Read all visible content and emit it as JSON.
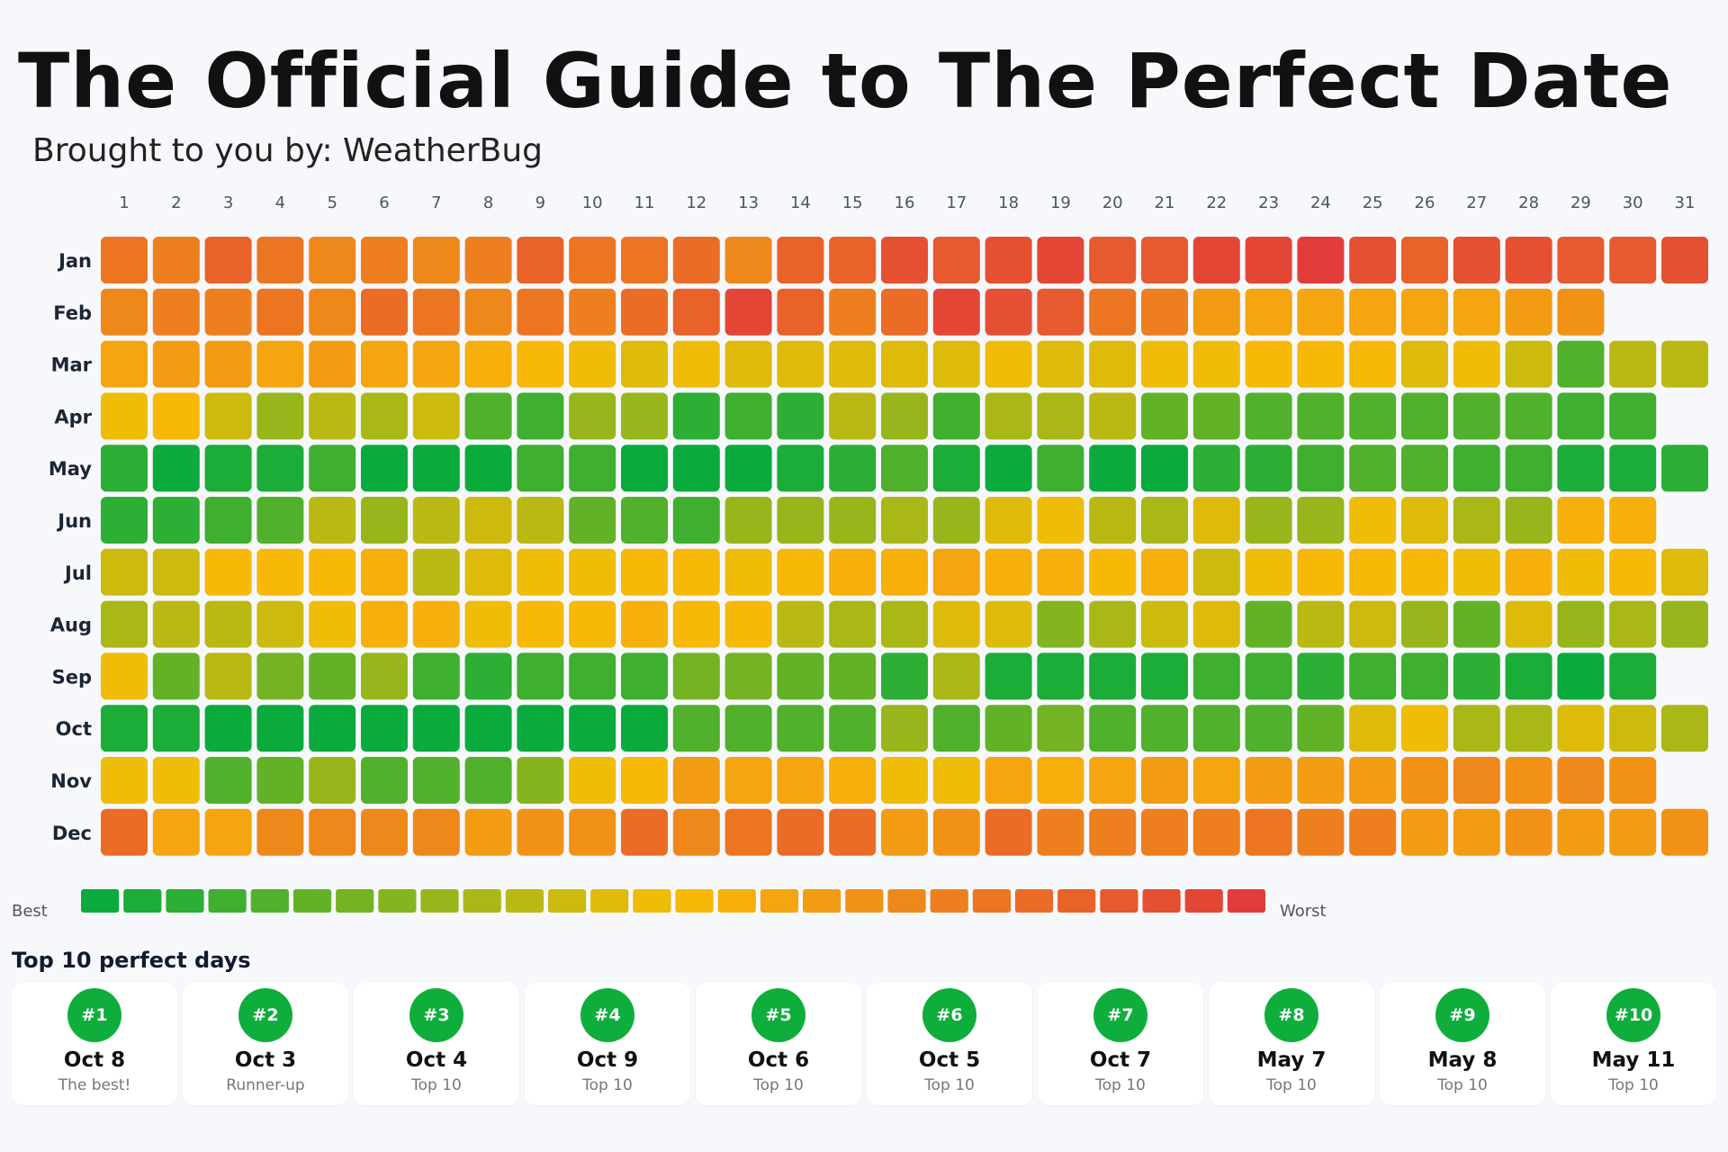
{
  "title": "The Official Guide to The Perfect Date",
  "subtitle": "Brought to you by: WeatherBug",
  "chart_data": {
    "type": "heatmap",
    "days": [
      "1",
      "2",
      "3",
      "4",
      "5",
      "6",
      "7",
      "8",
      "9",
      "10",
      "11",
      "12",
      "13",
      "14",
      "15",
      "16",
      "17",
      "18",
      "19",
      "20",
      "21",
      "22",
      "23",
      "24",
      "25",
      "26",
      "27",
      "28",
      "29",
      "30",
      "31"
    ],
    "months": [
      "Jan",
      "Feb",
      "Mar",
      "Apr",
      "May",
      "Jun",
      "Jul",
      "Aug",
      "Sep",
      "Oct",
      "Nov",
      "Dec"
    ],
    "value_scale": "0 = best (green) to 27 = worst (red)",
    "values": [
      [
        21,
        20,
        23,
        21,
        19,
        20,
        19,
        20,
        23,
        21,
        21,
        22,
        19,
        23,
        23,
        25,
        24,
        25,
        26,
        24,
        24,
        26,
        26,
        27,
        25,
        23,
        25,
        25,
        24,
        24,
        25
      ],
      [
        19,
        20,
        20,
        21,
        19,
        22,
        21,
        19,
        21,
        20,
        22,
        23,
        26,
        23,
        20,
        22,
        26,
        25,
        24,
        21,
        20,
        17,
        16,
        16,
        16,
        16,
        16,
        17,
        18
      ],
      [
        16,
        17,
        17,
        16,
        17,
        16,
        16,
        15,
        14,
        13,
        12,
        13,
        12,
        12,
        12,
        12,
        12,
        13,
        12,
        12,
        13,
        13,
        14,
        14,
        14,
        12,
        13,
        11,
        4,
        10,
        10
      ],
      [
        13,
        14,
        11,
        8,
        10,
        9,
        11,
        4,
        3,
        8,
        8,
        2,
        3,
        2,
        10,
        8,
        3,
        9,
        9,
        10,
        5,
        5,
        4,
        4,
        4,
        4,
        4,
        4,
        3,
        3
      ],
      [
        2,
        0,
        1,
        1,
        3,
        0,
        0,
        0,
        3,
        3,
        0,
        0,
        0,
        1,
        2,
        4,
        1,
        0,
        3,
        0,
        0,
        2,
        2,
        3,
        4,
        4,
        3,
        3,
        1,
        1,
        2
      ],
      [
        2,
        2,
        3,
        4,
        10,
        8,
        10,
        11,
        10,
        5,
        4,
        3,
        8,
        8,
        8,
        9,
        8,
        12,
        13,
        10,
        9,
        12,
        8,
        8,
        13,
        12,
        9,
        8,
        15,
        15
      ],
      [
        11,
        11,
        14,
        14,
        14,
        15,
        10,
        12,
        13,
        13,
        14,
        14,
        13,
        14,
        15,
        15,
        16,
        15,
        15,
        14,
        15,
        11,
        13,
        14,
        14,
        14,
        13,
        15,
        13,
        14,
        12
      ],
      [
        9,
        10,
        10,
        11,
        13,
        15,
        15,
        13,
        14,
        14,
        15,
        14,
        14,
        10,
        9,
        9,
        12,
        12,
        7,
        9,
        11,
        12,
        5,
        10,
        11,
        8,
        5,
        12,
        8,
        9,
        8
      ],
      [
        13,
        5,
        10,
        6,
        5,
        8,
        3,
        2,
        3,
        3,
        3,
        6,
        6,
        5,
        5,
        2,
        9,
        1,
        1,
        1,
        1,
        3,
        3,
        2,
        3,
        3,
        2,
        1,
        0,
        1
      ],
      [
        1,
        1,
        0,
        0,
        0,
        0,
        0,
        0,
        0,
        0,
        0,
        4,
        4,
        4,
        4,
        8,
        4,
        5,
        6,
        4,
        4,
        4,
        4,
        5,
        12,
        13,
        9,
        9,
        12,
        11,
        9
      ],
      [
        13,
        13,
        4,
        5,
        8,
        4,
        4,
        4,
        7,
        13,
        14,
        17,
        16,
        16,
        15,
        13,
        13,
        16,
        15,
        16,
        17,
        16,
        17,
        17,
        17,
        18,
        19,
        18,
        19,
        18
      ],
      [
        22,
        16,
        16,
        19,
        19,
        19,
        19,
        17,
        18,
        18,
        22,
        19,
        21,
        22,
        22,
        17,
        18,
        22,
        20,
        20,
        20,
        20,
        21,
        20,
        20,
        17,
        17,
        18,
        17,
        17,
        18
      ]
    ],
    "legend": {
      "low_label": "Best",
      "high_label": "Worst",
      "steps": 28
    }
  },
  "top_days": {
    "title": "Top 10 perfect days",
    "items": [
      {
        "rank": "#1",
        "day": "Oct 8",
        "note": "The best!"
      },
      {
        "rank": "#2",
        "day": "Oct 3",
        "note": "Runner-up"
      },
      {
        "rank": "#3",
        "day": "Oct 4",
        "note": "Top 10"
      },
      {
        "rank": "#4",
        "day": "Oct 9",
        "note": "Top 10"
      },
      {
        "rank": "#5",
        "day": "Oct 6",
        "note": "Top 10"
      },
      {
        "rank": "#6",
        "day": "Oct 5",
        "note": "Top 10"
      },
      {
        "rank": "#7",
        "day": "Oct 7",
        "note": "Top 10"
      },
      {
        "rank": "#8",
        "day": "May 7",
        "note": "Top 10"
      },
      {
        "rank": "#9",
        "day": "May 8",
        "note": "Top 10"
      },
      {
        "rank": "#10",
        "day": "May 11",
        "note": "Top 10"
      }
    ]
  },
  "colors": {
    "best": "#0aab3c",
    "mid": "#f8bd05",
    "worst": "#e23c3a",
    "badge": "#0fae3c"
  }
}
